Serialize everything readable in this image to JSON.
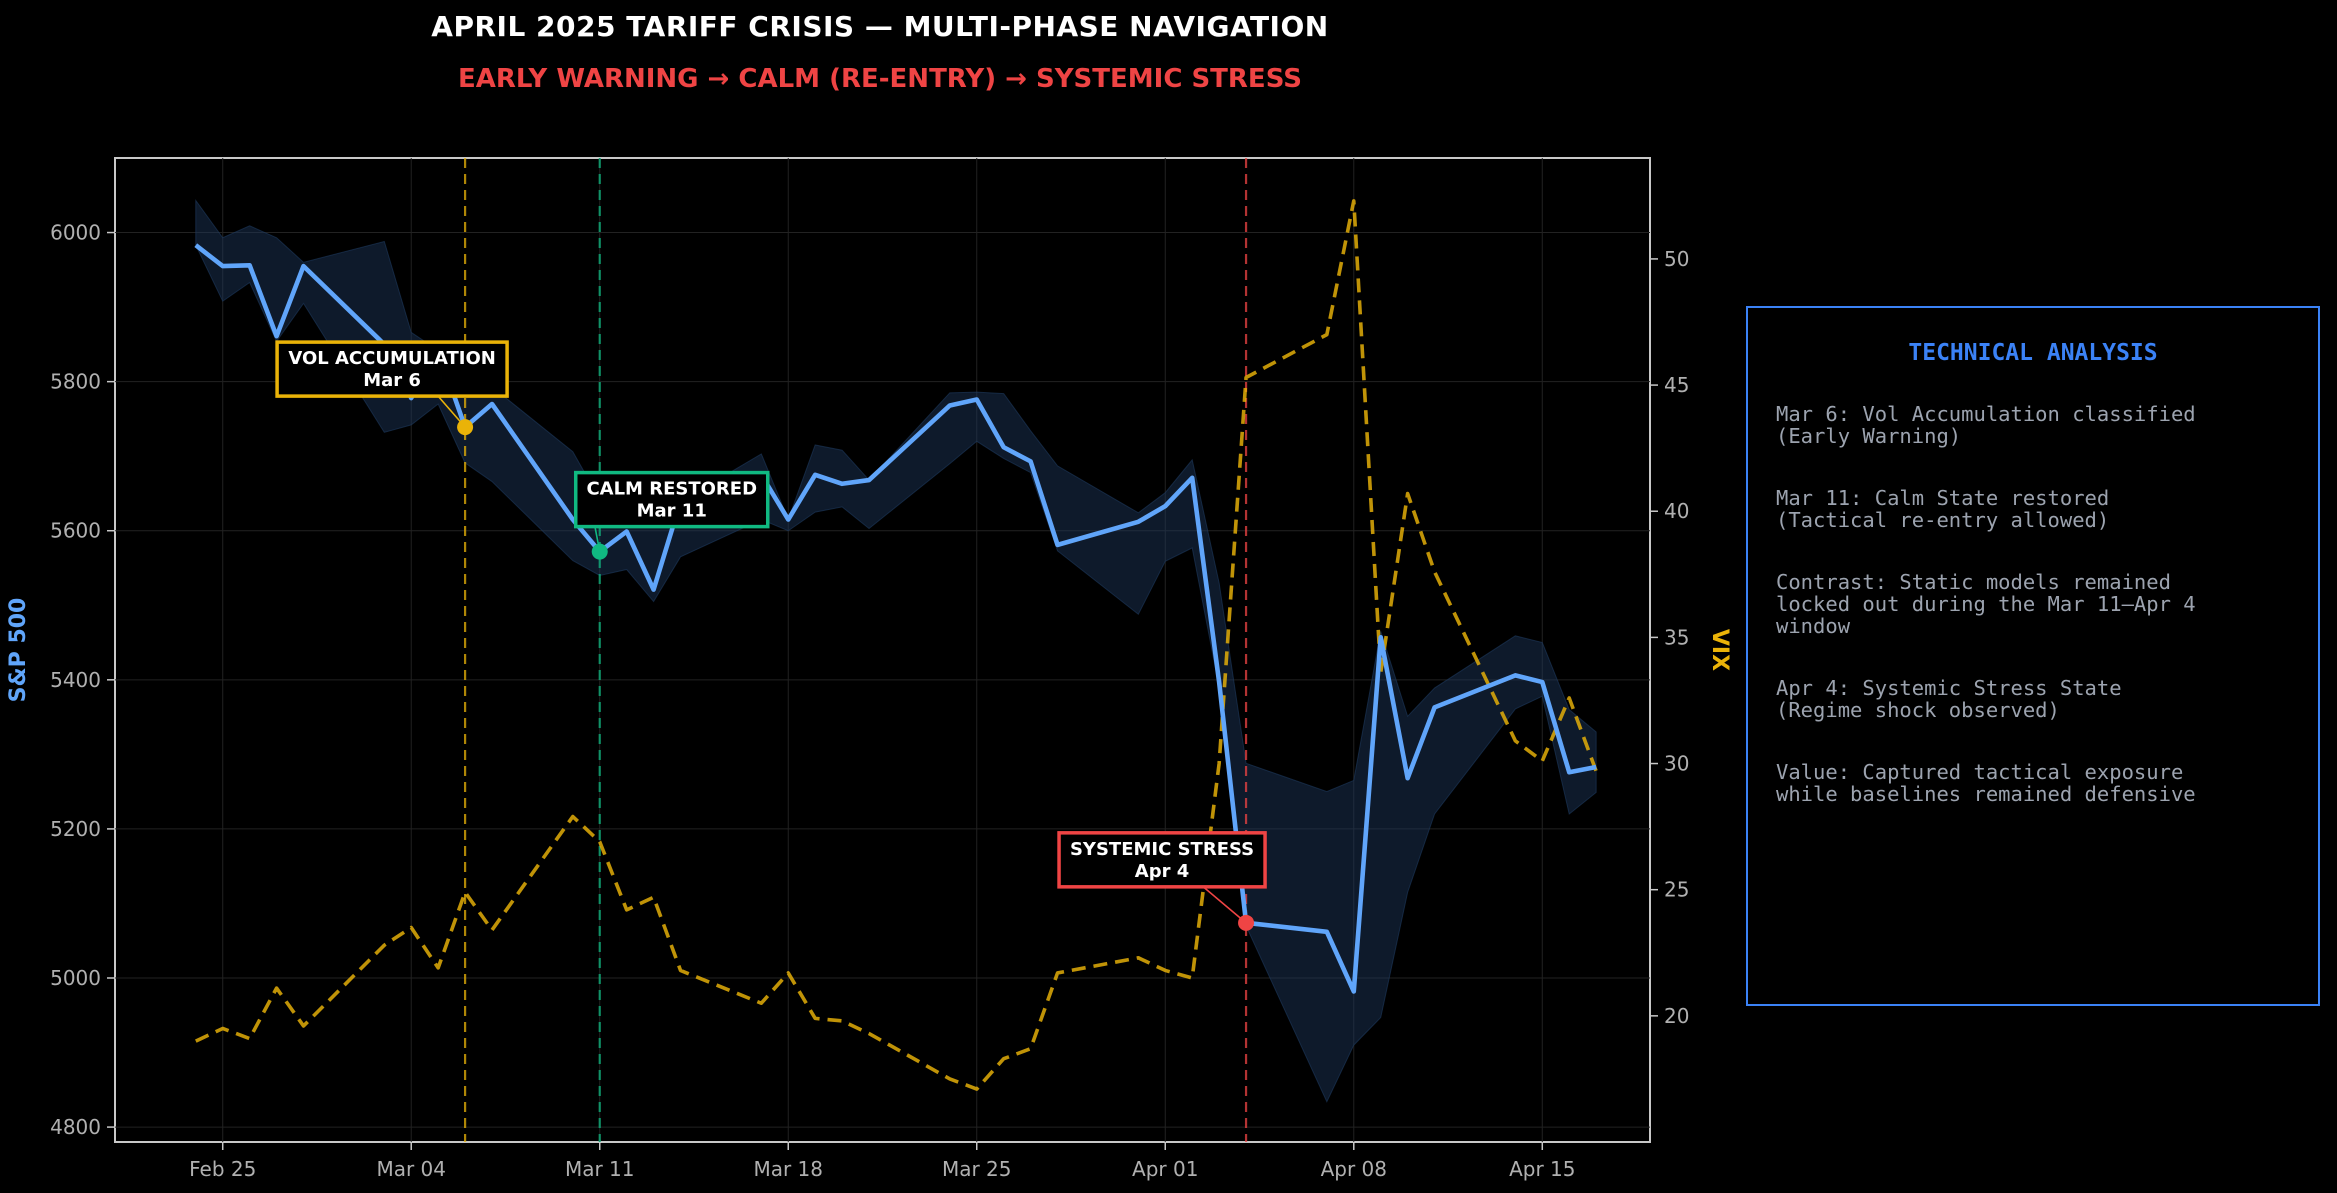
{
  "title": "APRIL 2025 TARIFF CRISIS — MULTI-PHASE NAVIGATION",
  "subtitle": "EARLY WARNING → CALM (RE-ENTRY) → SYSTEMIC STRESS",
  "colors": {
    "background": "#000000",
    "spx": "#60a5fa",
    "vix": "#eab308",
    "early_warning": "#eab308",
    "calm": "#10b981",
    "stress": "#ef4444",
    "panel_border": "#3b82f6",
    "tick_text": "#b0b0b0"
  },
  "chart_data": {
    "type": "line",
    "grid": true,
    "x_ticks": [
      "Feb 25",
      "Mar 04",
      "Mar 11",
      "Mar 18",
      "Mar 25",
      "Apr 01",
      "Apr 08",
      "Apr 15"
    ],
    "x_tick_dates": [
      "2025-02-25",
      "2025-03-04",
      "2025-03-11",
      "2025-03-18",
      "2025-03-25",
      "2025-04-01",
      "2025-04-08",
      "2025-04-15"
    ],
    "xlim": [
      "2025-02-21",
      "2025-04-19"
    ],
    "y_left": {
      "label": "S&P 500",
      "ylim": [
        4780,
        6100
      ],
      "ticks": [
        4800,
        5000,
        5200,
        5400,
        5600,
        5800,
        6000
      ]
    },
    "y_right": {
      "label": "VIX",
      "ylim": [
        15,
        54
      ],
      "ticks": [
        20,
        25,
        30,
        35,
        40,
        45,
        50
      ]
    },
    "series": [
      {
        "name": "S&P 500",
        "axis": "left",
        "style": "solid",
        "points": [
          [
            "2025-02-24",
            5983
          ],
          [
            "2025-02-25",
            5955
          ],
          [
            "2025-02-26",
            5956
          ],
          [
            "2025-02-27",
            5861
          ],
          [
            "2025-02-28",
            5955
          ],
          [
            "2025-03-03",
            5850
          ],
          [
            "2025-03-04",
            5778
          ],
          [
            "2025-03-05",
            5842
          ],
          [
            "2025-03-06",
            5739
          ],
          [
            "2025-03-07",
            5770
          ],
          [
            "2025-03-10",
            5615
          ],
          [
            "2025-03-11",
            5572
          ],
          [
            "2025-03-12",
            5599
          ],
          [
            "2025-03-13",
            5521
          ],
          [
            "2025-03-14",
            5639
          ],
          [
            "2025-03-17",
            5675
          ],
          [
            "2025-03-18",
            5615
          ],
          [
            "2025-03-19",
            5675
          ],
          [
            "2025-03-20",
            5663
          ],
          [
            "2025-03-21",
            5668
          ],
          [
            "2025-03-24",
            5768
          ],
          [
            "2025-03-25",
            5776
          ],
          [
            "2025-03-26",
            5712
          ],
          [
            "2025-03-27",
            5693
          ],
          [
            "2025-03-28",
            5581
          ],
          [
            "2025-03-31",
            5612
          ],
          [
            "2025-04-01",
            5633
          ],
          [
            "2025-04-02",
            5671
          ],
          [
            "2025-04-03",
            5397
          ],
          [
            "2025-04-04",
            5074
          ],
          [
            "2025-04-07",
            5062
          ],
          [
            "2025-04-08",
            4982
          ],
          [
            "2025-04-09",
            5457
          ],
          [
            "2025-04-10",
            5268
          ],
          [
            "2025-04-11",
            5363
          ],
          [
            "2025-04-14",
            5406
          ],
          [
            "2025-04-15",
            5397
          ],
          [
            "2025-04-16",
            5276
          ],
          [
            "2025-04-17",
            5283
          ]
        ]
      },
      {
        "name": "VIX",
        "axis": "right",
        "style": "dashed",
        "points": [
          [
            "2025-02-24",
            19.0
          ],
          [
            "2025-02-25",
            19.5
          ],
          [
            "2025-02-26",
            19.1
          ],
          [
            "2025-02-27",
            21.1
          ],
          [
            "2025-02-28",
            19.6
          ],
          [
            "2025-03-03",
            22.8
          ],
          [
            "2025-03-04",
            23.5
          ],
          [
            "2025-03-05",
            21.9
          ],
          [
            "2025-03-06",
            24.9
          ],
          [
            "2025-03-07",
            23.4
          ],
          [
            "2025-03-10",
            27.9
          ],
          [
            "2025-03-11",
            26.9
          ],
          [
            "2025-03-12",
            24.2
          ],
          [
            "2025-03-13",
            24.7
          ],
          [
            "2025-03-14",
            21.8
          ],
          [
            "2025-03-17",
            20.5
          ],
          [
            "2025-03-18",
            21.7
          ],
          [
            "2025-03-19",
            19.9
          ],
          [
            "2025-03-20",
            19.8
          ],
          [
            "2025-03-21",
            19.3
          ],
          [
            "2025-03-24",
            17.5
          ],
          [
            "2025-03-25",
            17.1
          ],
          [
            "2025-03-26",
            18.3
          ],
          [
            "2025-03-27",
            18.7
          ],
          [
            "2025-03-28",
            21.7
          ],
          [
            "2025-03-31",
            22.3
          ],
          [
            "2025-04-01",
            21.8
          ],
          [
            "2025-04-02",
            21.5
          ],
          [
            "2025-04-03",
            30.0
          ],
          [
            "2025-04-04",
            45.3
          ],
          [
            "2025-04-07",
            47.0
          ],
          [
            "2025-04-08",
            52.3
          ],
          [
            "2025-04-09",
            33.6
          ],
          [
            "2025-04-10",
            40.7
          ],
          [
            "2025-04-11",
            37.6
          ],
          [
            "2025-04-14",
            30.9
          ],
          [
            "2025-04-15",
            30.1
          ],
          [
            "2025-04-16",
            32.6
          ],
          [
            "2025-04-17",
            29.7
          ]
        ]
      }
    ],
    "spx_band": {
      "upper": [
        [
          "2025-02-24",
          6043
        ],
        [
          "2025-02-25",
          5993
        ],
        [
          "2025-02-26",
          6009
        ],
        [
          "2025-02-27",
          5993
        ],
        [
          "2025-02-28",
          5960
        ],
        [
          "2025-03-03",
          5988
        ],
        [
          "2025-03-04",
          5866
        ],
        [
          "2025-03-05",
          5842
        ],
        [
          "2025-03-06",
          5787
        ],
        [
          "2025-03-07",
          5793
        ],
        [
          "2025-03-10",
          5706
        ],
        [
          "2025-03-11",
          5642
        ],
        [
          "2025-03-12",
          5651
        ],
        [
          "2025-03-13",
          5614
        ],
        [
          "2025-03-14",
          5639
        ],
        [
          "2025-03-17",
          5703
        ],
        [
          "2025-03-18",
          5615
        ],
        [
          "2025-03-19",
          5715
        ],
        [
          "2025-03-20",
          5708
        ],
        [
          "2025-03-21",
          5668
        ],
        [
          "2025-03-24",
          5785
        ],
        [
          "2025-03-25",
          5786
        ],
        [
          "2025-03-26",
          5784
        ],
        [
          "2025-03-27",
          5734
        ],
        [
          "2025-03-28",
          5687
        ],
        [
          "2025-03-31",
          5624
        ],
        [
          "2025-04-01",
          5651
        ],
        [
          "2025-04-02",
          5695
        ],
        [
          "2025-04-03",
          5530
        ],
        [
          "2025-04-04",
          5288
        ],
        [
          "2025-04-07",
          5250
        ],
        [
          "2025-04-08",
          5265
        ],
        [
          "2025-04-09",
          5465
        ],
        [
          "2025-04-10",
          5351
        ],
        [
          "2025-04-11",
          5389
        ],
        [
          "2025-04-14",
          5459
        ],
        [
          "2025-04-15",
          5450
        ],
        [
          "2025-04-16",
          5360
        ],
        [
          "2025-04-17",
          5330
        ]
      ],
      "lower": [
        [
          "2025-02-24",
          5983
        ],
        [
          "2025-02-25",
          5908
        ],
        [
          "2025-02-26",
          5933
        ],
        [
          "2025-02-27",
          5854
        ],
        [
          "2025-02-28",
          5905
        ],
        [
          "2025-03-03",
          5732
        ],
        [
          "2025-03-04",
          5742
        ],
        [
          "2025-03-05",
          5770
        ],
        [
          "2025-03-06",
          5691
        ],
        [
          "2025-03-07",
          5666
        ],
        [
          "2025-03-10",
          5560
        ],
        [
          "2025-03-11",
          5540
        ],
        [
          "2025-03-12",
          5548
        ],
        [
          "2025-03-13",
          5505
        ],
        [
          "2025-03-14",
          5565
        ],
        [
          "2025-03-17",
          5615
        ],
        [
          "2025-03-18",
          5600
        ],
        [
          "2025-03-19",
          5625
        ],
        [
          "2025-03-20",
          5632
        ],
        [
          "2025-03-21",
          5603
        ],
        [
          "2025-03-24",
          5690
        ],
        [
          "2025-03-25",
          5720
        ],
        [
          "2025-03-26",
          5697
        ],
        [
          "2025-03-27",
          5678
        ],
        [
          "2025-03-28",
          5573
        ],
        [
          "2025-03-31",
          5488
        ],
        [
          "2025-04-01",
          5559
        ],
        [
          "2025-04-02",
          5577
        ],
        [
          "2025-04-03",
          5390
        ],
        [
          "2025-04-04",
          5070
        ],
        [
          "2025-04-07",
          4834
        ],
        [
          "2025-04-08",
          4910
        ],
        [
          "2025-04-09",
          4947
        ],
        [
          "2025-04-10",
          5115
        ],
        [
          "2025-04-11",
          5220
        ],
        [
          "2025-04-14",
          5361
        ],
        [
          "2025-04-15",
          5378
        ],
        [
          "2025-04-16",
          5220
        ],
        [
          "2025-04-17",
          5249
        ]
      ]
    },
    "events": [
      {
        "date": "2025-03-06",
        "value": 5739,
        "label": "VOL ACCUMULATION",
        "sublabel": "Mar 6",
        "color": "#eab308"
      },
      {
        "date": "2025-03-11",
        "value": 5572,
        "label": "CALM RESTORED",
        "sublabel": "Mar 11",
        "color": "#10b981"
      },
      {
        "date": "2025-04-04",
        "value": 5074,
        "label": "SYSTEMIC STRESS",
        "sublabel": "Apr 4",
        "color": "#ef4444"
      }
    ]
  },
  "panel": {
    "title": "TECHNICAL ANALYSIS",
    "items": [
      "Mar 6: Vol Accumulation classified\n(Early Warning)",
      "Mar 11: Calm State restored\n(Tactical re-entry allowed)",
      "Contrast: Static models remained\nlocked out during the Mar 11–Apr 4\nwindow",
      "Apr 4: Systemic Stress State\n(Regime shock observed)",
      "Value: Captured tactical exposure\nwhile baselines remained defensive"
    ]
  }
}
